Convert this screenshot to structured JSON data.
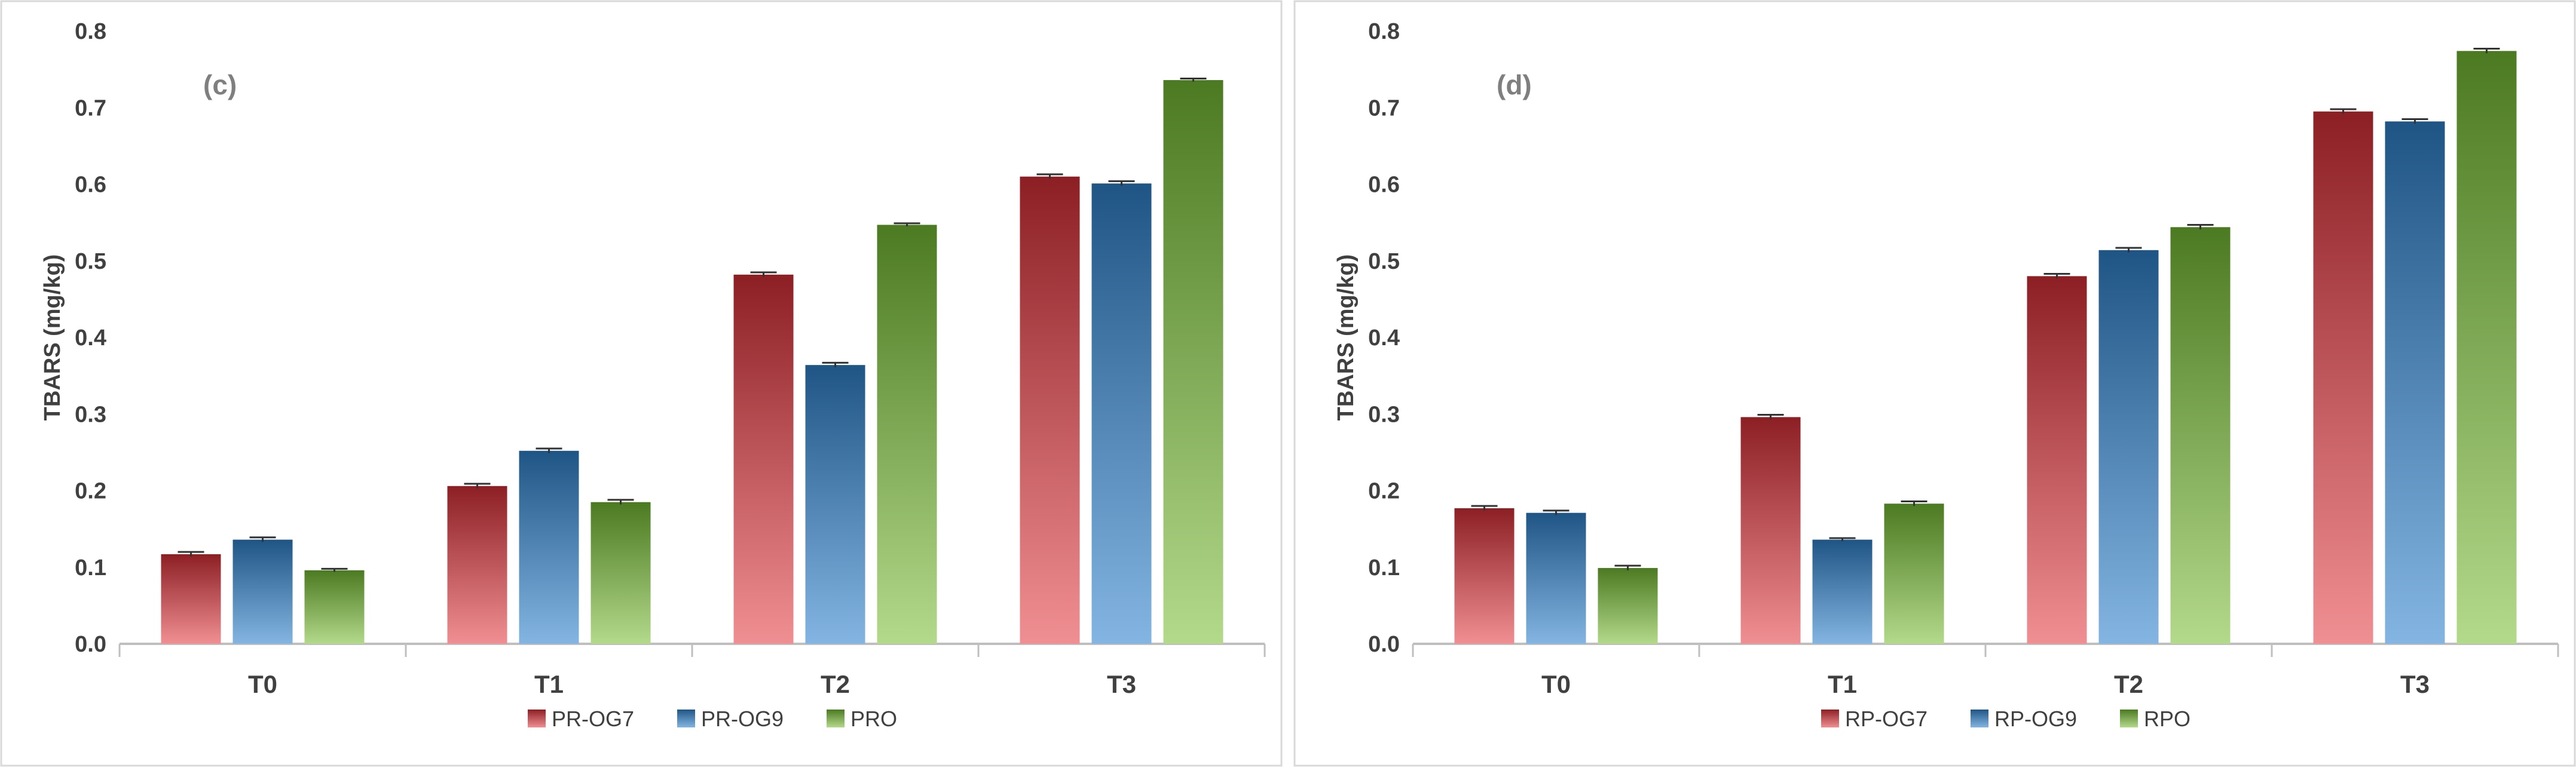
{
  "charts": [
    {
      "panel_label": "(c)",
      "ylabel": "TBARS  (mg/kg)",
      "ylim": [
        0,
        0.8
      ],
      "yticks": [
        "0.0",
        "0.1",
        "0.2",
        "0.3",
        "0.4",
        "0.5",
        "0.6",
        "0.7",
        "0.8"
      ],
      "categories": [
        "T0",
        "T1",
        "T2",
        "T3"
      ],
      "series": [
        {
          "name": "PR-OG7",
          "values": [
            0.117,
            0.206,
            0.482,
            0.61
          ],
          "errors": [
            0.003,
            0.003,
            0.003,
            0.003
          ]
        },
        {
          "name": "PR-OG9",
          "values": [
            0.136,
            0.252,
            0.364,
            0.601
          ],
          "errors": [
            0.003,
            0.003,
            0.003,
            0.003
          ]
        },
        {
          "name": "PRO",
          "values": [
            0.096,
            0.185,
            0.547,
            0.736
          ],
          "errors": [
            0.002,
            0.003,
            0.002,
            0.002
          ]
        }
      ]
    },
    {
      "panel_label": "(d)",
      "ylabel": "TBARS  (mg/kg)",
      "ylim": [
        0,
        0.8
      ],
      "yticks": [
        "0.0",
        "0.1",
        "0.2",
        "0.3",
        "0.4",
        "0.5",
        "0.6",
        "0.7",
        "0.8"
      ],
      "categories": [
        "T0",
        "T1",
        "T2",
        "T3"
      ],
      "series": [
        {
          "name": "RP-OG7",
          "values": [
            0.177,
            0.296,
            0.48,
            0.695
          ],
          "errors": [
            0.003,
            0.003,
            0.003,
            0.003
          ]
        },
        {
          "name": "RP-OG9",
          "values": [
            0.171,
            0.136,
            0.514,
            0.682
          ],
          "errors": [
            0.003,
            0.002,
            0.003,
            0.003
          ]
        },
        {
          "name": "RPO",
          "values": [
            0.099,
            0.183,
            0.544,
            0.774
          ],
          "errors": [
            0.003,
            0.003,
            0.003,
            0.003
          ]
        }
      ]
    }
  ],
  "chart_data": [
    {
      "type": "bar",
      "title": "(c)",
      "xlabel": "",
      "ylabel": "TBARS  (mg/kg)",
      "ylim": [
        0,
        0.8
      ],
      "grid": false,
      "legend": "bottom",
      "categories": [
        "T0",
        "T1",
        "T2",
        "T3"
      ],
      "series": [
        {
          "name": "PR-OG7",
          "values": [
            0.117,
            0.206,
            0.482,
            0.61
          ]
        },
        {
          "name": "PR-OG9",
          "values": [
            0.136,
            0.252,
            0.364,
            0.601
          ]
        },
        {
          "name": "PRO",
          "values": [
            0.096,
            0.185,
            0.547,
            0.736
          ]
        }
      ]
    },
    {
      "type": "bar",
      "title": "(d)",
      "xlabel": "",
      "ylabel": "TBARS  (mg/kg)",
      "ylim": [
        0,
        0.8
      ],
      "grid": false,
      "legend": "bottom",
      "categories": [
        "T0",
        "T1",
        "T2",
        "T3"
      ],
      "series": [
        {
          "name": "RP-OG7",
          "values": [
            0.177,
            0.296,
            0.48,
            0.695
          ]
        },
        {
          "name": "RP-OG9",
          "values": [
            0.171,
            0.136,
            0.514,
            0.682
          ]
        },
        {
          "name": "RPO",
          "values": [
            0.099,
            0.183,
            0.544,
            0.774
          ]
        }
      ]
    }
  ],
  "colors": {
    "red_top": "#8c1f24",
    "red_bottom": "#f08f93",
    "blue_top": "#1f5585",
    "blue_bottom": "#84b5e2",
    "green_top": "#4c7a22",
    "green_bottom": "#b3d98a",
    "axis": "#bfbfbf",
    "text": "#404040",
    "panel_label": "#7f7f7f",
    "border": "#d9d9d9"
  }
}
